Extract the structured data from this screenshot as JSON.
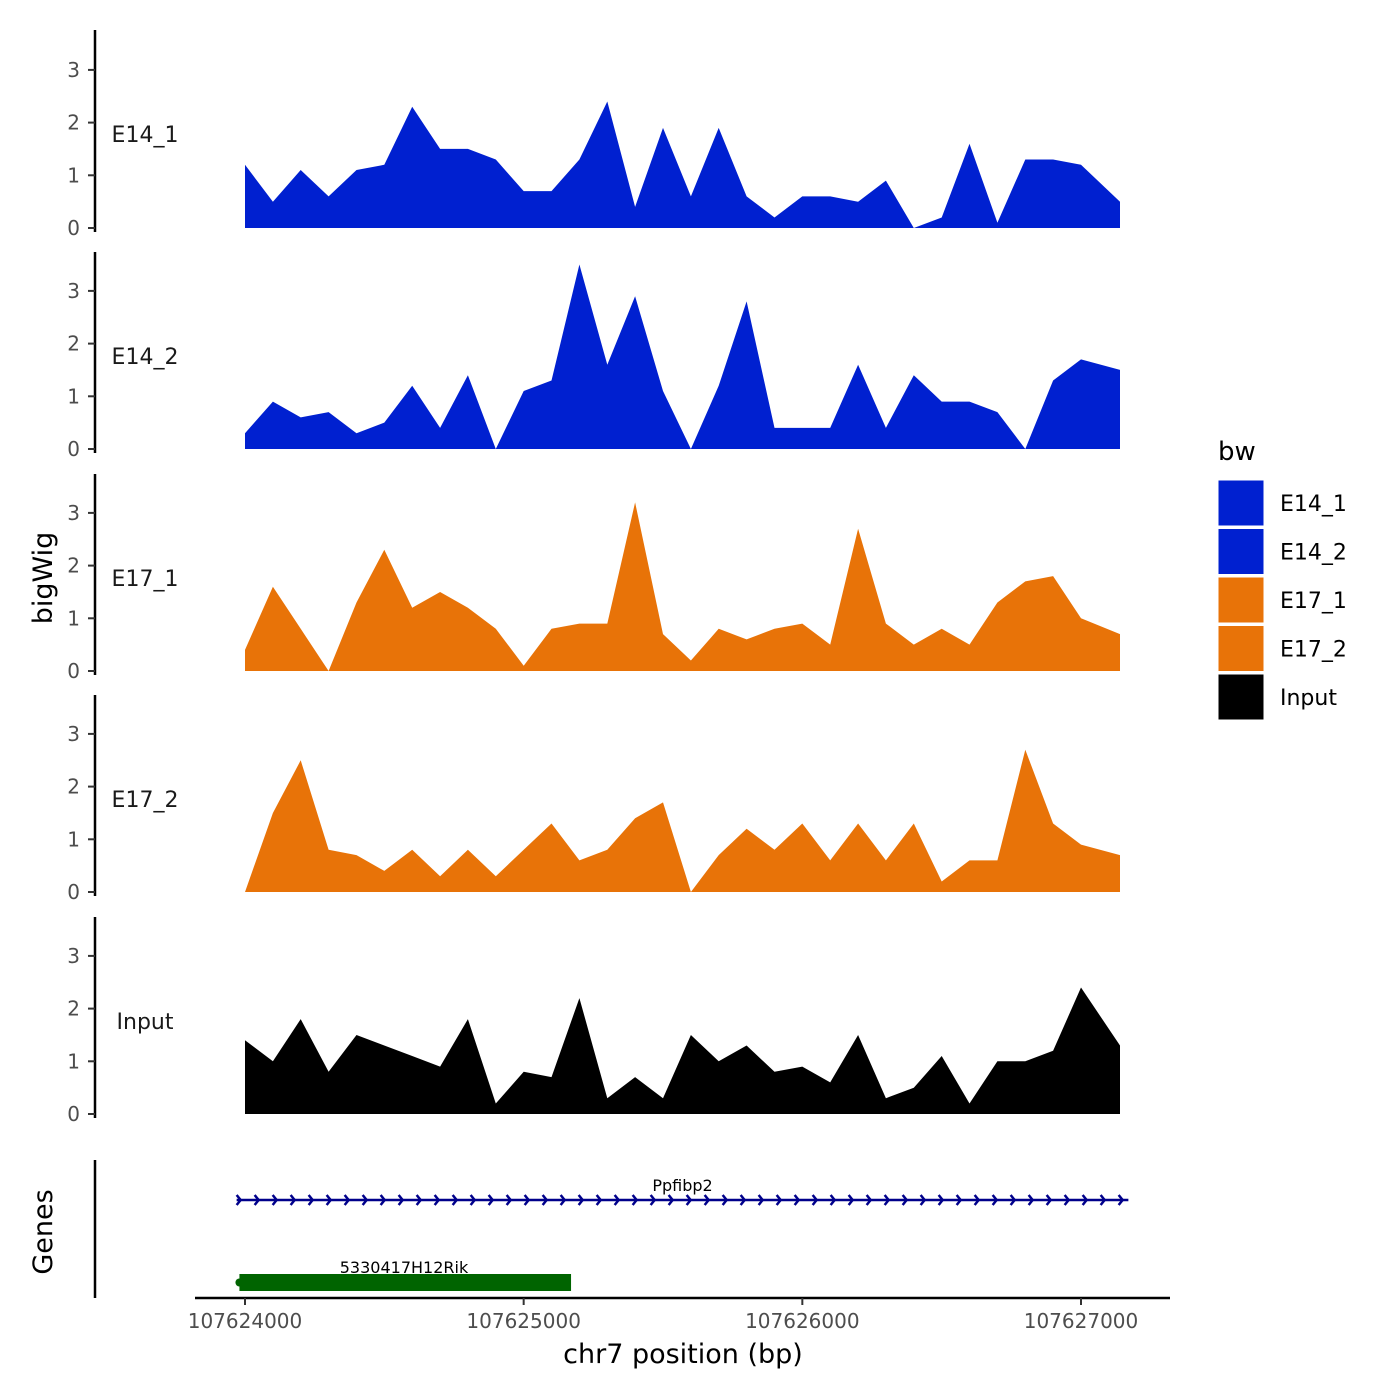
{
  "chart_data": {
    "type": "area",
    "xlabel": "chr7 position (bp)",
    "ylabel": "bigWig",
    "genes_label": "Genes",
    "xlim": [
      107623830,
      107627330
    ],
    "x_ticks": [
      107624000,
      107625000,
      107626000,
      107627000
    ],
    "x_tick_labels": [
      "107624000",
      "107625000",
      "107626000",
      "107627000"
    ],
    "ylim": [
      0,
      3.7
    ],
    "y_ticks": [
      0,
      1,
      2,
      3
    ],
    "y_tick_labels": [
      "0",
      "1",
      "2",
      "3"
    ],
    "legend": {
      "title": "bw",
      "position": "right",
      "entries": [
        {
          "label": "E14_1",
          "color": "#0020D0"
        },
        {
          "label": "E14_2",
          "color": "#0020D0"
        },
        {
          "label": "E17_1",
          "color": "#E87308"
        },
        {
          "label": "E17_2",
          "color": "#E87308"
        },
        {
          "label": "Input",
          "color": "#000000"
        }
      ]
    },
    "x_grid": [
      107624000,
      107624100,
      107624200,
      107624300,
      107624400,
      107624500,
      107624600,
      107624700,
      107624800,
      107624900,
      107625000,
      107625100,
      107625200,
      107625300,
      107625400,
      107625500,
      107625600,
      107625700,
      107625800,
      107625900,
      107626000,
      107626100,
      107626200,
      107626300,
      107626400,
      107626500,
      107626600,
      107626700,
      107626800,
      107626900,
      107627000,
      107627140
    ],
    "series": [
      {
        "name": "E14_1",
        "color": "#0020D0",
        "values": [
          1.2,
          0.5,
          1.1,
          0.6,
          1.1,
          1.2,
          2.3,
          1.5,
          1.5,
          1.3,
          0.7,
          0.7,
          1.3,
          2.4,
          0.4,
          1.9,
          0.6,
          1.9,
          0.6,
          0.2,
          0.6,
          0.6,
          0.5,
          0.9,
          0.0,
          0.2,
          1.6,
          0.1,
          1.3,
          1.3,
          1.2,
          0.5
        ]
      },
      {
        "name": "E14_2",
        "color": "#0020D0",
        "values": [
          0.3,
          0.9,
          0.6,
          0.7,
          0.3,
          0.5,
          1.2,
          0.4,
          1.4,
          0.0,
          1.1,
          1.3,
          3.5,
          1.6,
          2.9,
          1.1,
          0.0,
          1.2,
          2.8,
          0.4,
          0.4,
          0.4,
          1.6,
          0.4,
          1.4,
          0.9,
          0.9,
          0.7,
          0.0,
          1.3,
          1.7,
          1.5
        ]
      },
      {
        "name": "E17_1",
        "color": "#E87308",
        "values": [
          0.4,
          1.6,
          0.8,
          0.0,
          1.3,
          2.3,
          1.2,
          1.5,
          1.2,
          0.8,
          0.1,
          0.8,
          0.9,
          0.9,
          3.2,
          0.7,
          0.2,
          0.8,
          0.6,
          0.8,
          0.9,
          0.5,
          2.7,
          0.9,
          0.5,
          0.8,
          0.5,
          1.3,
          1.7,
          1.8,
          1.0,
          0.7
        ]
      },
      {
        "name": "E17_2",
        "color": "#E87308",
        "values": [
          0.0,
          1.5,
          2.5,
          0.8,
          0.7,
          0.4,
          0.8,
          0.3,
          0.8,
          0.3,
          0.8,
          1.3,
          0.6,
          0.8,
          1.4,
          1.7,
          0.0,
          0.7,
          1.2,
          0.8,
          1.3,
          0.6,
          1.3,
          0.6,
          1.3,
          0.2,
          0.6,
          0.6,
          2.7,
          1.3,
          0.9,
          0.7
        ]
      },
      {
        "name": "Input",
        "color": "#000000",
        "values": [
          1.4,
          1.0,
          1.8,
          0.8,
          1.5,
          1.3,
          1.1,
          0.9,
          1.8,
          0.2,
          0.8,
          0.7,
          2.2,
          0.3,
          0.7,
          0.3,
          1.5,
          1.0,
          1.3,
          0.8,
          0.9,
          0.6,
          1.5,
          0.3,
          0.5,
          1.1,
          0.2,
          1.0,
          1.0,
          1.2,
          2.4,
          1.3
        ]
      }
    ],
    "genes": [
      {
        "name": "Ppfibp2",
        "start": 107623970,
        "end": 107627170,
        "strand": "+",
        "color": "#00008B"
      },
      {
        "name": "5330417H12Rik",
        "start": 107623980,
        "end": 107625170,
        "strand": "+",
        "color": "#006400"
      }
    ]
  }
}
